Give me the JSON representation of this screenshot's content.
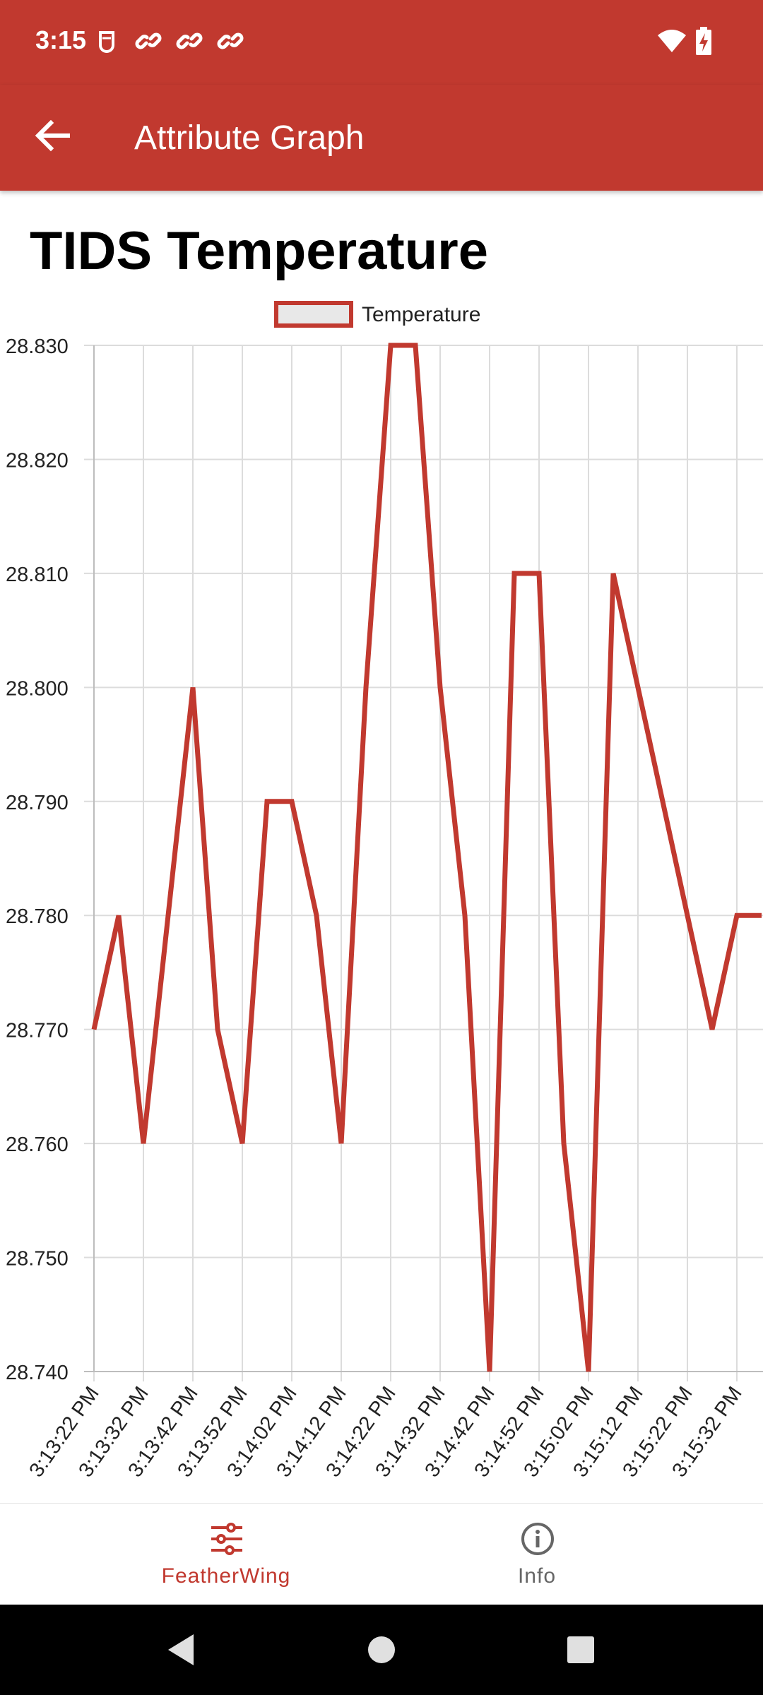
{
  "status_bar": {
    "time": "3:15",
    "left_icons": [
      "robot-notification-icon",
      "link-icon",
      "link-icon",
      "link-icon"
    ],
    "right_icons": [
      "wifi-icon",
      "battery-charging-icon"
    ]
  },
  "app_bar": {
    "title": "Attribute Graph",
    "back_icon": "arrow-back-icon"
  },
  "heading": "TIDS Temperature",
  "chart_data": {
    "type": "line",
    "title": "",
    "legend_position": "top-center",
    "grid": true,
    "y_ticks": [
      "28.830",
      "28.820",
      "28.810",
      "28.800",
      "28.790",
      "28.780",
      "28.770",
      "28.760",
      "28.750",
      "28.740"
    ],
    "ylim": [
      28.74,
      28.83
    ],
    "x_tick_labels": [
      "3:13:22 PM",
      "3:13:32 PM",
      "3:13:42 PM",
      "3:13:52 PM",
      "3:14:02 PM",
      "3:14:12 PM",
      "3:14:22 PM",
      "3:14:32 PM",
      "3:14:42 PM",
      "3:14:52 PM",
      "3:15:02 PM",
      "3:15:12 PM",
      "3:15:22 PM",
      "3:15:32 PM"
    ],
    "series": [
      {
        "name": "Temperature",
        "color": "#c1392f",
        "values": [
          28.77,
          28.78,
          28.76,
          28.78,
          28.8,
          28.77,
          28.76,
          28.79,
          28.79,
          28.78,
          28.76,
          28.8,
          28.83,
          28.83,
          28.8,
          28.78,
          28.74,
          28.81,
          28.81,
          28.76,
          28.74,
          28.81,
          28.8,
          28.79,
          28.78,
          28.77,
          28.78,
          28.78
        ]
      }
    ]
  },
  "bottom_nav": {
    "items": [
      {
        "label": "FeatherWing",
        "icon": "sliders-icon",
        "active": true
      },
      {
        "label": "Info",
        "icon": "info-icon",
        "active": false
      }
    ]
  },
  "system_nav": [
    "back-triangle-icon",
    "home-circle-icon",
    "recents-square-icon"
  ],
  "colors": {
    "primary": "#c1392f",
    "inactive": "#666666",
    "grid": "#dddddd"
  }
}
